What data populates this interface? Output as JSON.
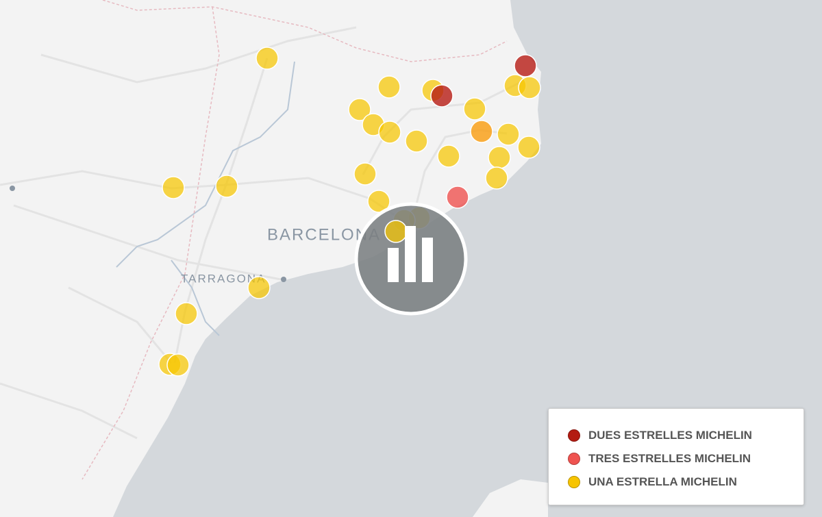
{
  "map": {
    "places": [
      "BARCELONA",
      "TARRAGONA"
    ]
  },
  "legend": {
    "items": [
      {
        "label": "DUES ESTRELLES MICHELIN",
        "color": "#b31b12"
      },
      {
        "label": "TRES ESTRELLES MICHELIN",
        "color": "#ef5350"
      },
      {
        "label": "UNA ESTRELLA MICHELIN",
        "color": "#f7c400"
      }
    ]
  }
}
